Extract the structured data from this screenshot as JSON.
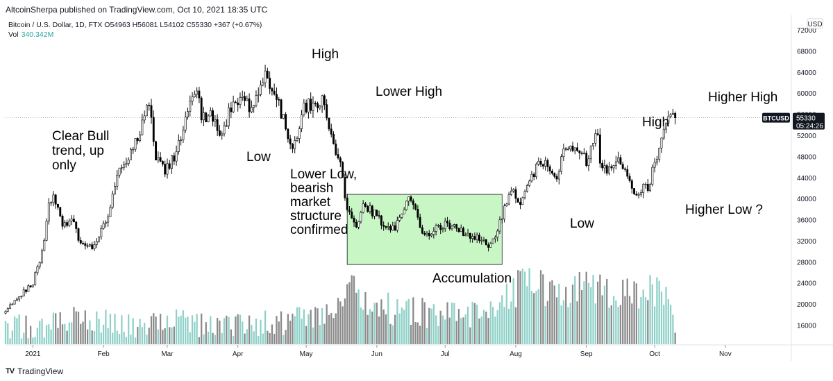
{
  "header": {
    "published": "AltcoinSherpa published on TradingView.com, Oct 10, 2021 18:35 UTC",
    "symbol_line": "Bitcoin / U.S. Dollar, 1D, FTX  O54963  H56081  L54102  C55330  +367 (+0.67%)",
    "volume_label": "Vol",
    "volume_value": "340.342M"
  },
  "footer": {
    "logo_text": "TV",
    "brand": "TradingView"
  },
  "currency_button": "USD",
  "price_tag": {
    "symbol": "BTCUSD",
    "price": "55330",
    "countdown": "05:24:26"
  },
  "colors": {
    "up": "#26a69a",
    "down": "#000000",
    "accumulation_box": "#c8f7c5",
    "price_tag": "#131722"
  },
  "annotations": [
    {
      "id": "clear-bull",
      "lines": [
        "Clear Bull",
        "trend, up",
        "only"
      ]
    },
    {
      "id": "low-1",
      "lines": [
        "Low"
      ]
    },
    {
      "id": "high-1",
      "lines": [
        "High"
      ]
    },
    {
      "id": "lower-high",
      "lines": [
        "Lower High"
      ]
    },
    {
      "id": "lower-low",
      "lines": [
        "Lower Low,",
        "bearish",
        "market",
        "structure",
        "confirmed"
      ]
    },
    {
      "id": "accumulation",
      "lines": [
        "Accumulation"
      ]
    },
    {
      "id": "low-2",
      "lines": [
        "Low"
      ]
    },
    {
      "id": "high-2",
      "lines": [
        "High"
      ]
    },
    {
      "id": "higher-high",
      "lines": [
        "Higher High"
      ]
    },
    {
      "id": "higher-low",
      "lines": [
        "Higher Low ?"
      ]
    }
  ],
  "chart_data": {
    "type": "candlestick",
    "title": "Bitcoin / U.S. Dollar, 1D, FTX",
    "x_tick_labels": [
      "2021",
      "Feb",
      "Mar",
      "Apr",
      "May",
      "Jun",
      "Jul",
      "Aug",
      "Sep",
      "Oct",
      "Nov"
    ],
    "y_tick_labels": [
      "16000",
      "20000",
      "24000",
      "28000",
      "32000",
      "36000",
      "40000",
      "44000",
      "48000",
      "52000",
      "56000",
      "60000",
      "64000",
      "68000",
      "72000"
    ],
    "ylim": [
      13000,
      74000
    ],
    "x_range": [
      "2020-12-20",
      "2021-11-30"
    ],
    "last_price": 55330,
    "accumulation_range": {
      "from": "2021-05-19",
      "to": "2021-07-26",
      "low": 27500,
      "high": 40800
    },
    "price_path": [
      [
        "2020-12-20",
        19000
      ],
      [
        "2020-12-25",
        20800
      ],
      [
        "2021-01-01",
        24000
      ],
      [
        "2021-01-05",
        30000
      ],
      [
        "2021-01-08",
        38500
      ],
      [
        "2021-01-10",
        40000
      ],
      [
        "2021-01-14",
        35000
      ],
      [
        "2021-01-18",
        36500
      ],
      [
        "2021-01-22",
        31000
      ],
      [
        "2021-01-27",
        30500
      ],
      [
        "2021-01-31",
        33500
      ],
      [
        "2021-02-04",
        38000
      ],
      [
        "2021-02-08",
        46000
      ],
      [
        "2021-02-12",
        47500
      ],
      [
        "2021-02-16",
        52000
      ],
      [
        "2021-02-21",
        57500
      ],
      [
        "2021-02-24",
        48500
      ],
      [
        "2021-02-28",
        45500
      ],
      [
        "2021-03-05",
        48500
      ],
      [
        "2021-03-10",
        56500
      ],
      [
        "2021-03-13",
        61000
      ],
      [
        "2021-03-16",
        56000
      ],
      [
        "2021-03-22",
        55500
      ],
      [
        "2021-03-25",
        51500
      ],
      [
        "2021-03-28",
        56000
      ],
      [
        "2021-04-02",
        59000
      ],
      [
        "2021-04-07",
        57500
      ],
      [
        "2021-04-10",
        60000
      ],
      [
        "2021-04-13",
        63500
      ],
      [
        "2021-04-16",
        61500
      ],
      [
        "2021-04-20",
        56000
      ],
      [
        "2021-04-25",
        49500
      ],
      [
        "2021-04-30",
        57500
      ],
      [
        "2021-05-05",
        57500
      ],
      [
        "2021-05-08",
        58500
      ],
      [
        "2021-05-10",
        56500
      ],
      [
        "2021-05-13",
        50000
      ],
      [
        "2021-05-16",
        46500
      ],
      [
        "2021-05-19",
        38000
      ],
      [
        "2021-05-23",
        34500
      ],
      [
        "2021-05-26",
        39000
      ],
      [
        "2021-06-01",
        36500
      ],
      [
        "2021-06-07",
        33500
      ],
      [
        "2021-06-13",
        37500
      ],
      [
        "2021-06-15",
        40000
      ],
      [
        "2021-06-18",
        38000
      ],
      [
        "2021-06-22",
        32500
      ],
      [
        "2021-06-27",
        34500
      ],
      [
        "2021-07-01",
        35000
      ],
      [
        "2021-07-07",
        34000
      ],
      [
        "2021-07-13",
        33000
      ],
      [
        "2021-07-18",
        31500
      ],
      [
        "2021-07-20",
        30000
      ],
      [
        "2021-07-26",
        37000
      ],
      [
        "2021-07-31",
        42000
      ],
      [
        "2021-08-03",
        38500
      ],
      [
        "2021-08-08",
        44500
      ],
      [
        "2021-08-14",
        47500
      ],
      [
        "2021-08-19",
        44500
      ],
      [
        "2021-08-23",
        49500
      ],
      [
        "2021-08-28",
        49000
      ],
      [
        "2021-09-01",
        47000
      ],
      [
        "2021-09-06",
        52500
      ],
      [
        "2021-09-07",
        46500
      ],
      [
        "2021-09-12",
        45000
      ],
      [
        "2021-09-16",
        47500
      ],
      [
        "2021-09-20",
        43000
      ],
      [
        "2021-09-22",
        41000
      ],
      [
        "2021-09-28",
        42500
      ],
      [
        "2021-10-02",
        47500
      ],
      [
        "2021-10-06",
        54500
      ],
      [
        "2021-10-10",
        55330
      ]
    ],
    "volume_series": [
      [
        "2021-01-01",
        16000
      ],
      [
        "2021-01-15",
        17200
      ],
      [
        "2021-02-10",
        16500
      ],
      [
        "2021-03-01",
        16800
      ],
      [
        "2021-04-01",
        16600
      ],
      [
        "2021-04-20",
        17000
      ],
      [
        "2021-05-13",
        19500
      ],
      [
        "2021-05-19",
        24500
      ],
      [
        "2021-05-25",
        21000
      ],
      [
        "2021-06-10",
        19000
      ],
      [
        "2021-06-25",
        18500
      ],
      [
        "2021-07-20",
        18000
      ],
      [
        "2021-07-31",
        22500
      ],
      [
        "2021-08-07",
        27800
      ],
      [
        "2021-08-14",
        22000
      ],
      [
        "2021-09-07",
        23500
      ],
      [
        "2021-09-20",
        22500
      ],
      [
        "2021-10-05",
        22500
      ],
      [
        "2021-10-10",
        16000
      ]
    ]
  }
}
